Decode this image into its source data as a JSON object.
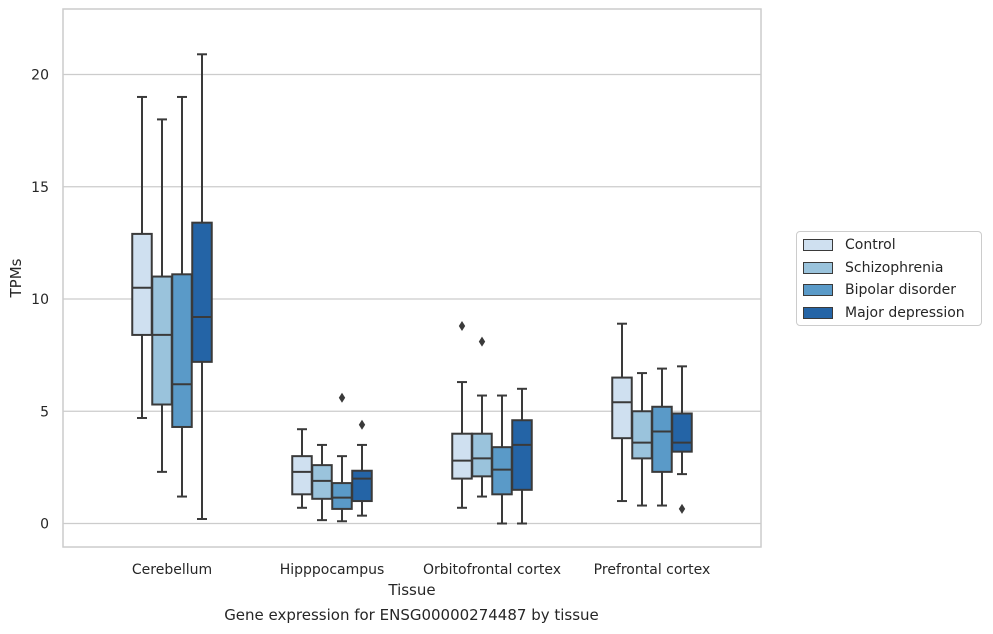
{
  "caption": "Gene expression for ENSG00000274487 by tissue",
  "colors": {
    "Control": "#cfe0f0",
    "Schizophrenia": "#9ac3dc",
    "Bipolar disorder": "#5a9ac8",
    "Major depression": "#2464a6",
    "line": "#3a3a3a",
    "grid": "#cccccc"
  },
  "chart_data": {
    "type": "box",
    "xlabel": "Tissue",
    "ylabel": "TPMs",
    "ylim": [
      -1.1,
      23.0
    ],
    "yticks": [
      0,
      5,
      10,
      15,
      20
    ],
    "grid": "horizontal",
    "legend_position": "right",
    "categories": [
      "Cerebellum",
      "Hipppocampus",
      "Orbitofrontal cortex",
      "Prefrontal cortex"
    ],
    "series": [
      {
        "name": "Control",
        "boxes": [
          {
            "whislo": 4.7,
            "q1": 8.4,
            "med": 10.5,
            "q3": 12.9,
            "whishi": 19.0,
            "fliers": []
          },
          {
            "whislo": 0.7,
            "q1": 1.3,
            "med": 2.3,
            "q3": 3.0,
            "whishi": 4.2,
            "fliers": []
          },
          {
            "whislo": 0.7,
            "q1": 2.0,
            "med": 2.8,
            "q3": 4.0,
            "whishi": 6.3,
            "fliers": [
              8.8
            ]
          },
          {
            "whislo": 1.0,
            "q1": 3.8,
            "med": 5.4,
            "q3": 6.5,
            "whishi": 8.9,
            "fliers": []
          }
        ]
      },
      {
        "name": "Schizophrenia",
        "boxes": [
          {
            "whislo": 2.3,
            "q1": 5.3,
            "med": 8.4,
            "q3": 11.0,
            "whishi": 18.0,
            "fliers": []
          },
          {
            "whislo": 0.15,
            "q1": 1.1,
            "med": 1.9,
            "q3": 2.6,
            "whishi": 3.5,
            "fliers": []
          },
          {
            "whislo": 1.2,
            "q1": 2.1,
            "med": 2.9,
            "q3": 4.0,
            "whishi": 5.7,
            "fliers": [
              8.1
            ]
          },
          {
            "whislo": 0.8,
            "q1": 2.9,
            "med": 3.6,
            "q3": 5.0,
            "whishi": 6.7,
            "fliers": []
          }
        ]
      },
      {
        "name": "Bipolar disorder",
        "boxes": [
          {
            "whislo": 1.2,
            "q1": 4.3,
            "med": 6.2,
            "q3": 11.1,
            "whishi": 19.0,
            "fliers": []
          },
          {
            "whislo": 0.1,
            "q1": 0.65,
            "med": 1.15,
            "q3": 1.8,
            "whishi": 3.0,
            "fliers": [
              5.6
            ]
          },
          {
            "whislo": 0.0,
            "q1": 1.3,
            "med": 2.4,
            "q3": 3.4,
            "whishi": 5.7,
            "fliers": []
          },
          {
            "whislo": 0.8,
            "q1": 2.3,
            "med": 4.1,
            "q3": 5.2,
            "whishi": 6.9,
            "fliers": []
          }
        ]
      },
      {
        "name": "Major depression",
        "boxes": [
          {
            "whislo": 0.2,
            "q1": 7.2,
            "med": 9.2,
            "q3": 13.4,
            "whishi": 20.9,
            "fliers": []
          },
          {
            "whislo": 0.35,
            "q1": 1.0,
            "med": 2.0,
            "q3": 2.35,
            "whishi": 3.5,
            "fliers": [
              4.4
            ]
          },
          {
            "whislo": 0.0,
            "q1": 1.5,
            "med": 3.5,
            "q3": 4.6,
            "whishi": 6.0,
            "fliers": []
          },
          {
            "whislo": 2.2,
            "q1": 3.2,
            "med": 3.6,
            "q3": 4.9,
            "whishi": 7.0,
            "fliers": [
              0.65
            ]
          }
        ]
      }
    ]
  }
}
